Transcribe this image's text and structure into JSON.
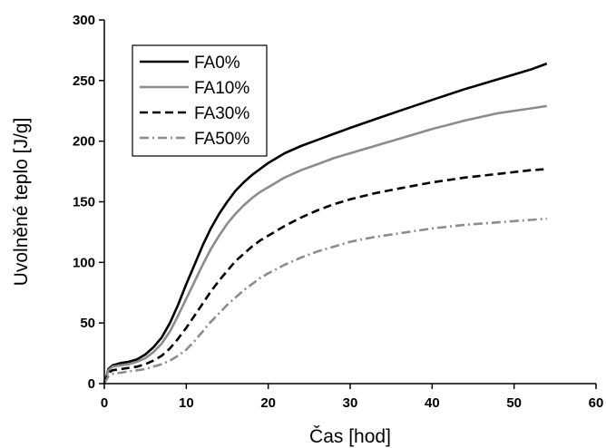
{
  "chart_data": {
    "type": "line",
    "title": "",
    "xlabel": "Čas [hod]",
    "ylabel": "Uvolněné teplo [J/g]",
    "xlim": [
      0,
      60
    ],
    "ylim": [
      0,
      300
    ],
    "xticks": [
      0,
      10,
      20,
      30,
      40,
      50,
      60
    ],
    "yticks": [
      0,
      50,
      100,
      150,
      200,
      250,
      300
    ],
    "grid": false,
    "legend_position": "top-left",
    "series": [
      {
        "name": "FA0%",
        "color": "#000000",
        "dash": "solid",
        "x": [
          0,
          0.5,
          1,
          2,
          3,
          4,
          5,
          6,
          7,
          8,
          9,
          10,
          11,
          12,
          13,
          14,
          15,
          16,
          17,
          18,
          19,
          20,
          22,
          24,
          26,
          28,
          30,
          33,
          36,
          40,
          44,
          48,
          52,
          54
        ],
        "y": [
          0,
          12,
          15,
          17,
          18,
          20,
          24,
          30,
          38,
          50,
          65,
          82,
          98,
          114,
          128,
          140,
          150,
          159,
          166,
          172,
          177,
          182,
          190,
          196,
          201,
          206,
          211,
          218,
          225,
          234,
          243,
          251,
          259,
          264
        ]
      },
      {
        "name": "FA10%",
        "color": "#8c8c8c",
        "dash": "solid",
        "x": [
          0,
          0.5,
          1,
          2,
          3,
          4,
          5,
          6,
          7,
          8,
          9,
          10,
          11,
          12,
          13,
          14,
          15,
          16,
          17,
          18,
          19,
          20,
          22,
          24,
          26,
          28,
          30,
          33,
          36,
          40,
          44,
          48,
          52,
          54
        ],
        "y": [
          0,
          11,
          14,
          15,
          16,
          18,
          21,
          26,
          33,
          43,
          56,
          70,
          84,
          98,
          111,
          122,
          132,
          140,
          147,
          153,
          158,
          162,
          170,
          176,
          181,
          186,
          190,
          196,
          202,
          210,
          217,
          223,
          227,
          229
        ]
      },
      {
        "name": "FA30%",
        "color": "#000000",
        "dash": "dash",
        "x": [
          0,
          0.5,
          1,
          2,
          3,
          4,
          5,
          6,
          7,
          8,
          9,
          10,
          11,
          12,
          13,
          14,
          15,
          16,
          17,
          18,
          19,
          20,
          22,
          24,
          26,
          28,
          30,
          33,
          36,
          40,
          44,
          48,
          52,
          54
        ],
        "y": [
          0,
          9,
          11,
          12,
          13,
          14,
          16,
          19,
          23,
          29,
          37,
          46,
          56,
          66,
          76,
          85,
          93,
          101,
          107,
          113,
          118,
          122,
          130,
          137,
          143,
          148,
          152,
          157,
          161,
          166,
          170,
          173,
          176,
          177
        ]
      },
      {
        "name": "FA50%",
        "color": "#8c8c8c",
        "dash": "dashdot",
        "x": [
          0,
          0.5,
          1,
          2,
          3,
          4,
          5,
          6,
          7,
          8,
          9,
          10,
          11,
          12,
          13,
          14,
          15,
          16,
          17,
          18,
          19,
          20,
          22,
          24,
          26,
          28,
          30,
          33,
          36,
          40,
          44,
          48,
          52,
          54
        ],
        "y": [
          0,
          6,
          8,
          9,
          10,
          11,
          12,
          14,
          16,
          19,
          23,
          28,
          35,
          43,
          51,
          58,
          65,
          71,
          77,
          82,
          87,
          91,
          98,
          104,
          109,
          113,
          117,
          121,
          124,
          128,
          131,
          133,
          135,
          136
        ]
      }
    ]
  }
}
